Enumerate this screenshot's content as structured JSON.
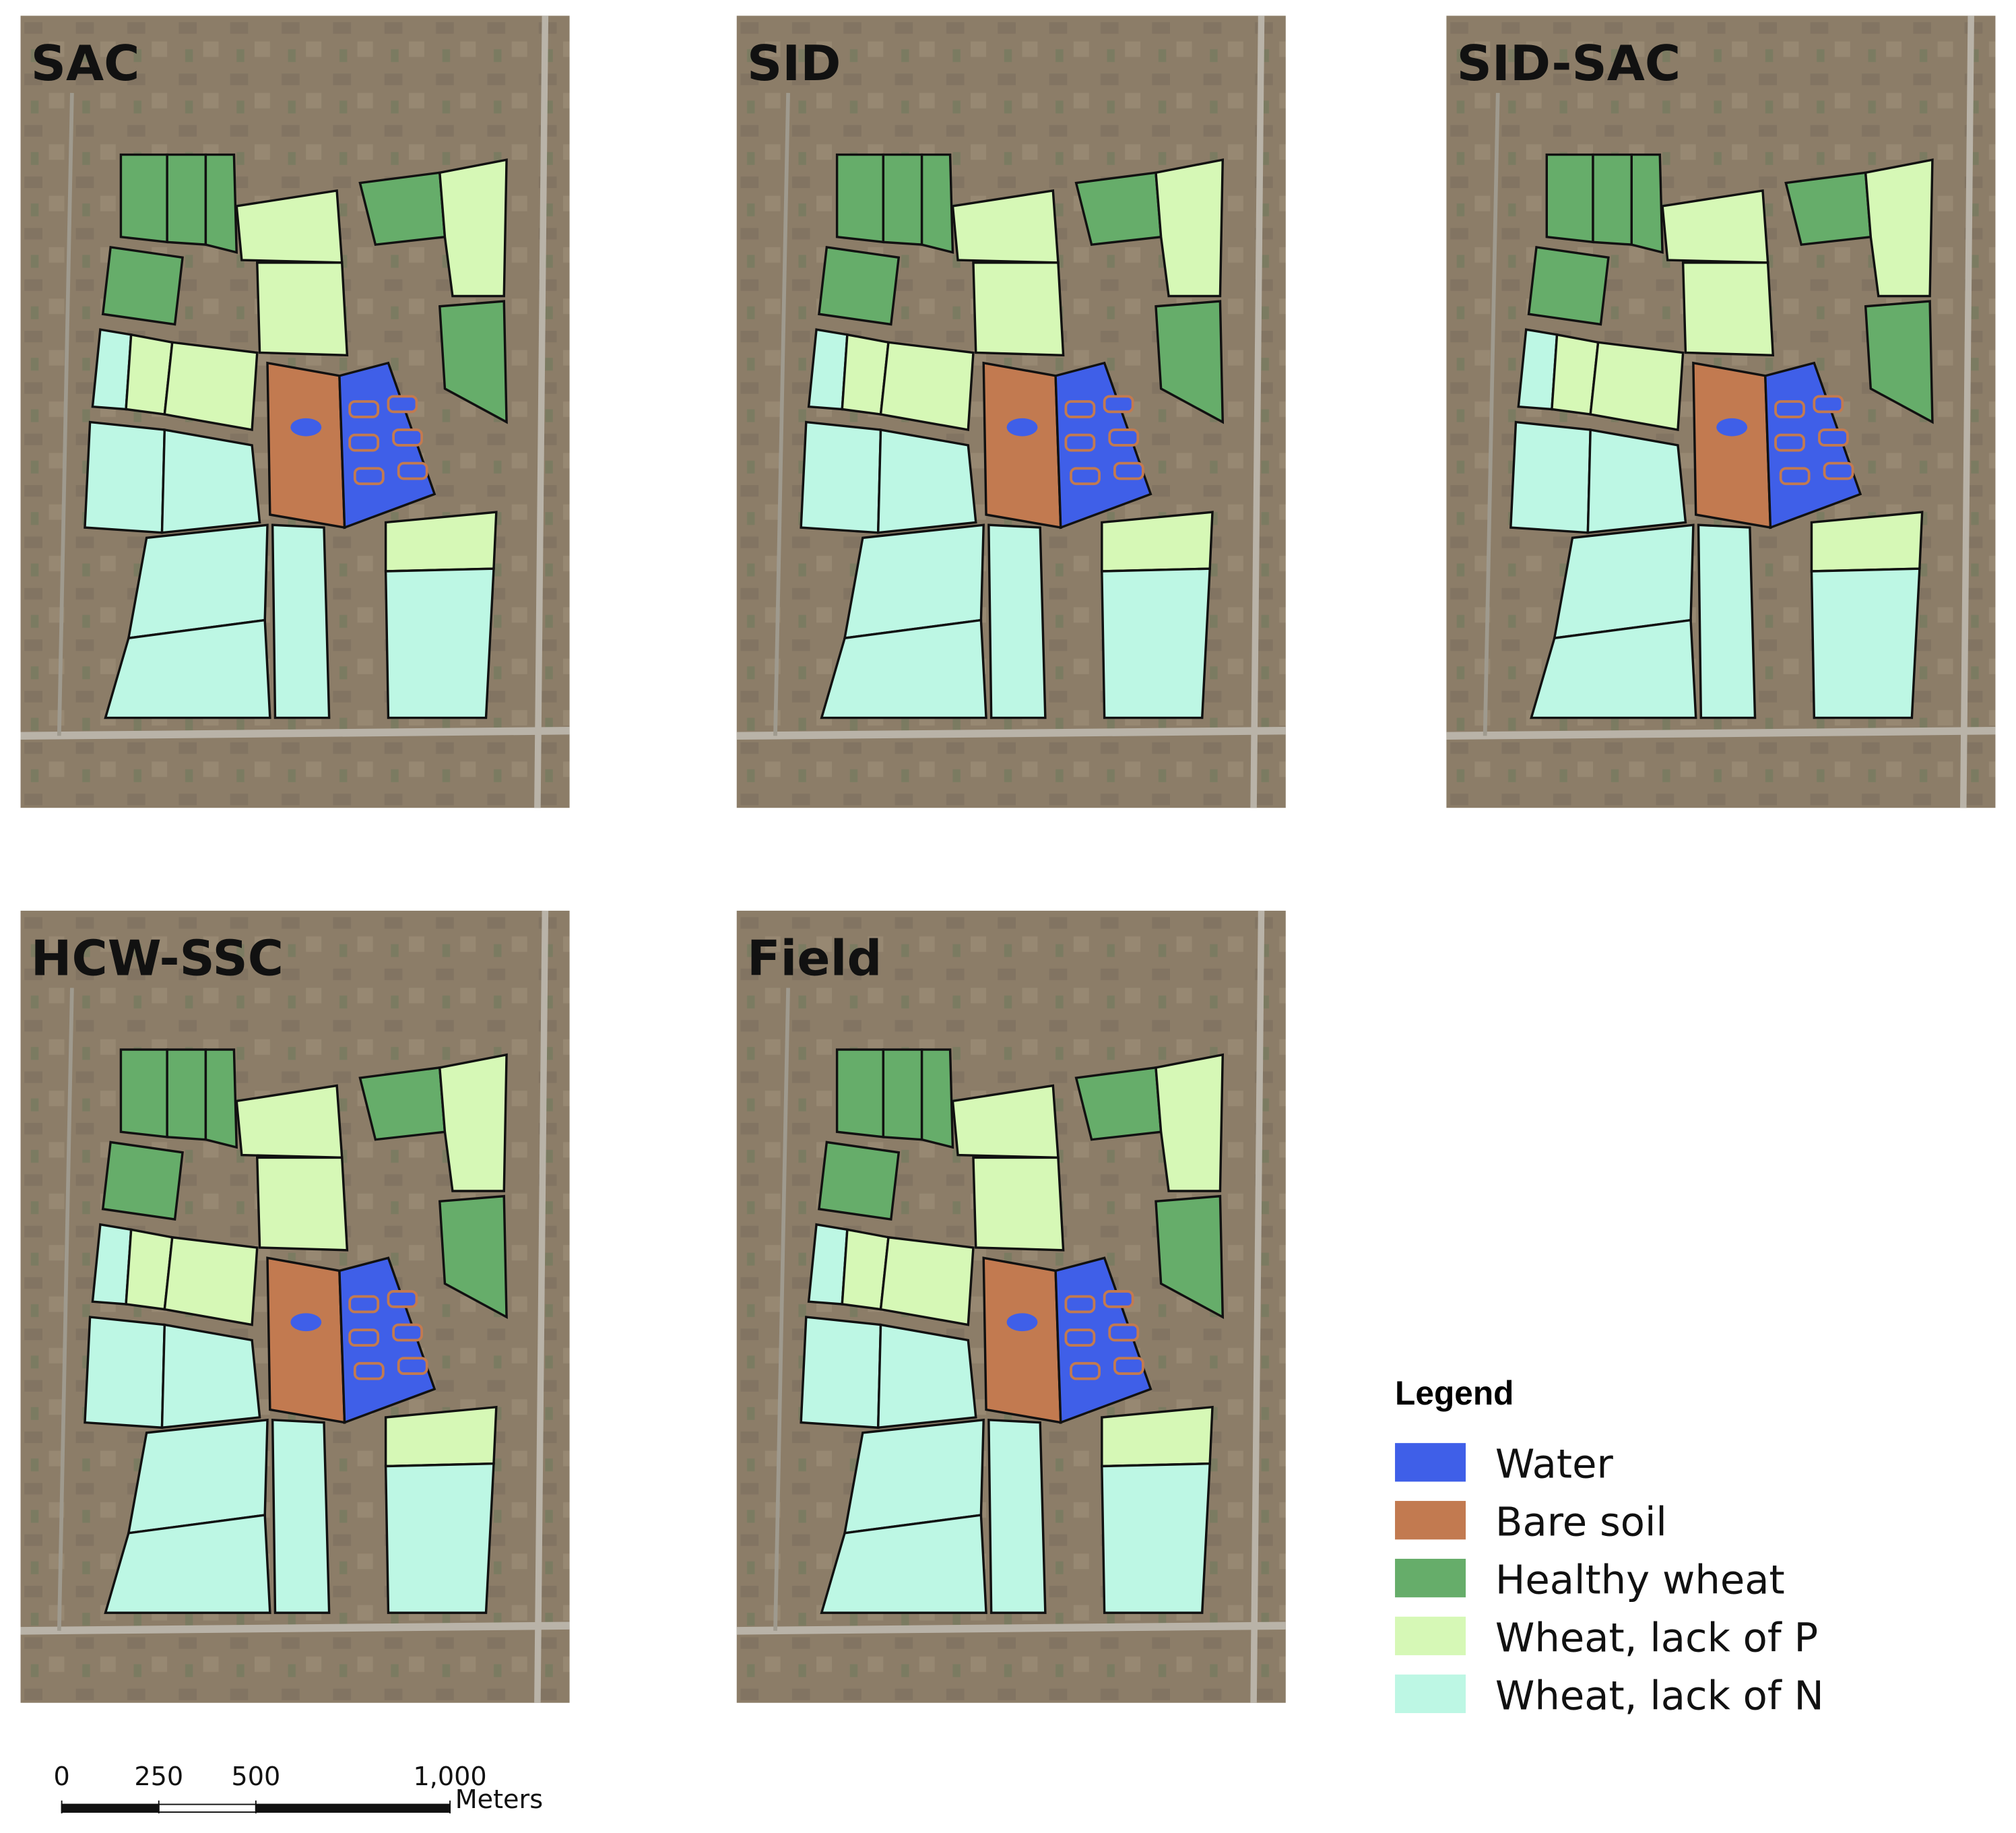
{
  "panels": [
    {
      "label": "SAC"
    },
    {
      "label": "SID"
    },
    {
      "label": "SID-SAC"
    },
    {
      "label": "HCW-SSC"
    },
    {
      "label": "Field"
    }
  ],
  "legend": {
    "title": "Legend",
    "items": [
      {
        "label": "Water",
        "color": "#3f5fe8"
      },
      {
        "label": "Bare soil",
        "color": "#c27a50"
      },
      {
        "label": "Healthy wheat",
        "color": "#66ad6a"
      },
      {
        "label": "Wheat, lack of P",
        "color": "#d6f8b6"
      },
      {
        "label": "Wheat, lack of N",
        "color": "#bdf7e4"
      }
    ]
  },
  "scale_bar": {
    "unit": "Meters",
    "ticks": [
      0,
      250,
      500,
      {
        "value": 1000,
        "label": "1,000"
      }
    ]
  }
}
